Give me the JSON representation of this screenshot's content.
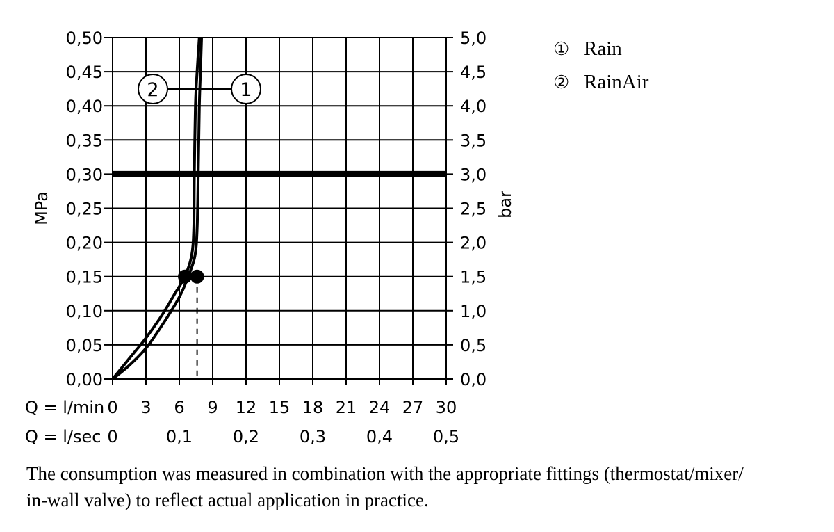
{
  "chart_data": {
    "type": "line",
    "left_axis": {
      "label": "MPa",
      "ylim": [
        0,
        0.5
      ],
      "tick_values": [
        0,
        0.05,
        0.1,
        0.15,
        0.2,
        0.25,
        0.3,
        0.35,
        0.4,
        0.45,
        0.5
      ],
      "tick_labels": [
        "0,00",
        "0,05",
        "0,10",
        "0,15",
        "0,20",
        "0,25",
        "0,30",
        "0,35",
        "0,40",
        "0,45",
        "0,50"
      ]
    },
    "right_axis": {
      "label": "bar",
      "ylim": [
        0,
        5
      ],
      "tick_labels": [
        "0,0",
        "0,5",
        "1,0",
        "1,5",
        "2,0",
        "2,5",
        "3,0",
        "3,5",
        "4,0",
        "4,5",
        "5,0"
      ]
    },
    "x_axis": {
      "xlim": [
        0,
        30
      ],
      "row1_label": "Q = l/min",
      "row1_tick_values": [
        0,
        3,
        6,
        9,
        12,
        15,
        18,
        21,
        24,
        27,
        30
      ],
      "row1_tick_labels": [
        "0",
        "3",
        "6",
        "9",
        "12",
        "15",
        "18",
        "21",
        "24",
        "27",
        "30"
      ],
      "row2_label": "Q = l/sec",
      "row2_tick_values": [
        0,
        6,
        12,
        18,
        24,
        30
      ],
      "row2_tick_labels": [
        "0",
        "0,1",
        "0,2",
        "0,3",
        "0,4",
        "0,5"
      ]
    },
    "grid": true,
    "reference_line": {
      "y": 0.3
    },
    "series": [
      {
        "name": "Rain",
        "marker_label": "1",
        "x": [
          0,
          1.5,
          3,
          4.5,
          6,
          6.8,
          7.4,
          7.6,
          7.7,
          7.8,
          7.9,
          8.0
        ],
        "y": [
          0,
          0.02,
          0.045,
          0.08,
          0.12,
          0.15,
          0.18,
          0.22,
          0.3,
          0.4,
          0.45,
          0.5
        ]
      },
      {
        "name": "RainAir",
        "marker_label": "2",
        "x": [
          0,
          1.5,
          3,
          4.5,
          5.6,
          6.5,
          7.1,
          7.3,
          7.35,
          7.45,
          7.6,
          7.8
        ],
        "y": [
          0,
          0.03,
          0.06,
          0.095,
          0.125,
          0.15,
          0.18,
          0.22,
          0.3,
          0.4,
          0.45,
          0.5
        ]
      }
    ],
    "markers": [
      {
        "x": 6.5,
        "y": 0.15
      },
      {
        "x": 7.6,
        "y": 0.15
      }
    ],
    "dashed_drop": {
      "x": 7.6,
      "y": 0.15
    },
    "legend": {
      "position": "top-right",
      "items": [
        {
          "symbol": "①",
          "label": "Rain"
        },
        {
          "symbol": "②",
          "label": "RainAir"
        }
      ]
    }
  },
  "caption": {
    "line1": "The consumption was measured in combination with the appropriate fittings (thermostat/mixer/",
    "line2": "in-wall valve) to reflect actual application in practice."
  }
}
